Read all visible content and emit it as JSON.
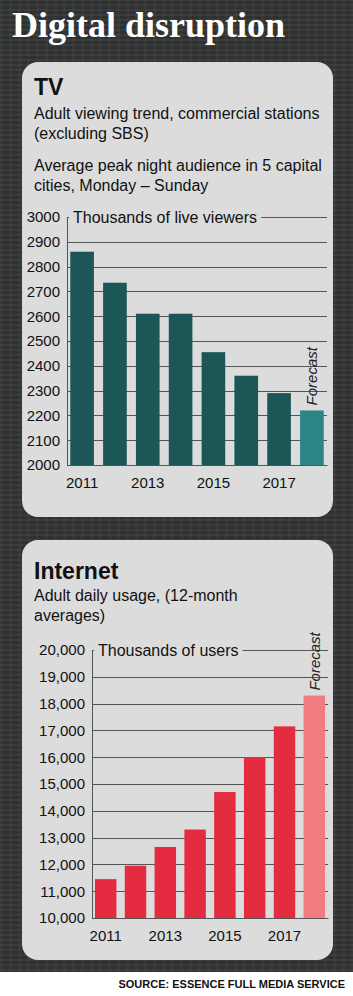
{
  "title": "Digital disruption",
  "source": "SOURCE: ESSENCE FULL MEDIA SERVICE",
  "chart_data": [
    {
      "type": "bar",
      "title": "TV",
      "subtitle": [
        "Adult viewing trend, commercial stations (excluding SBS)",
        "Average peak night audience in 5 capital cities, Monday – Sunday"
      ],
      "y_label": "Thousands of live viewers",
      "categories": [
        "2011",
        null,
        "2013",
        null,
        "2015",
        null,
        "2017",
        null
      ],
      "values": [
        2860,
        2735,
        2610,
        2610,
        2455,
        2360,
        2290,
        2220
      ],
      "colors": [
        "#1d5656",
        "#1d5656",
        "#1d5656",
        "#1d5656",
        "#1d5656",
        "#1d5656",
        "#1d5656",
        "#2c8585"
      ],
      "annotations": [
        "Forecast"
      ],
      "ylim": [
        2000,
        3000
      ],
      "yticks": [
        2000,
        2100,
        2200,
        2300,
        2400,
        2500,
        2600,
        2700,
        2800,
        2900,
        3000
      ],
      "grid": true
    },
    {
      "type": "bar",
      "title": "Internet",
      "subtitle": [
        "Adult daily usage, (12-month averages)"
      ],
      "y_label": "Thousands of users",
      "categories": [
        "2011",
        null,
        "2013",
        null,
        "2015",
        null,
        "2017",
        null
      ],
      "values": [
        11450,
        11950,
        12650,
        13300,
        14700,
        16000,
        17150,
        18300
      ],
      "colors": [
        "#e52b3f",
        "#e52b3f",
        "#e52b3f",
        "#e52b3f",
        "#e52b3f",
        "#e52b3f",
        "#e52b3f",
        "#f07c80"
      ],
      "annotations": [
        "Forecast"
      ],
      "ylim": [
        10000,
        20000
      ],
      "yticks": [
        {
          "value": 10000,
          "label": "10,000"
        },
        {
          "value": 11000,
          "label": "11,000"
        },
        {
          "value": 12000,
          "label": "12,000"
        },
        {
          "value": 13000,
          "label": "13,000"
        },
        {
          "value": 14000,
          "label": "14,000"
        },
        {
          "value": 15000,
          "label": "15,000"
        },
        {
          "value": 16000,
          "label": "16,000"
        },
        {
          "value": 17000,
          "label": "17,000"
        },
        {
          "value": 18000,
          "label": "18,000"
        },
        {
          "value": 19000,
          "label": "19,000"
        },
        {
          "value": 20000,
          "label": "20,000"
        }
      ],
      "grid": true
    }
  ]
}
